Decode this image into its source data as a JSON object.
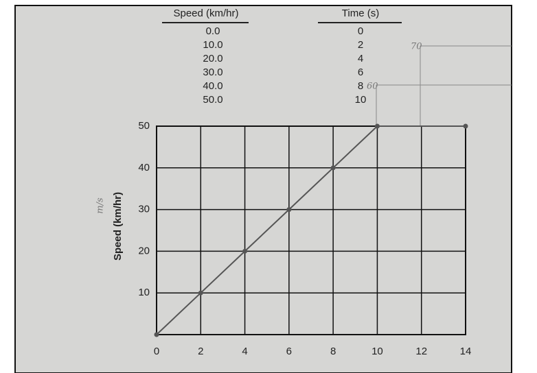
{
  "table": {
    "headers": [
      "Speed (km/hr)",
      "Time (s)"
    ],
    "rows": [
      [
        "0.0",
        "0"
      ],
      [
        "10.0",
        "2"
      ],
      [
        "20.0",
        "4"
      ],
      [
        "30.0",
        "6"
      ],
      [
        "40.0",
        "8"
      ],
      [
        "50.0",
        "10"
      ]
    ]
  },
  "chart_data": {
    "type": "line",
    "y_label": "Speed (km/hr)",
    "annotations": [
      "m/s",
      "70",
      "60"
    ],
    "x": [
      0,
      2,
      4,
      6,
      8,
      10,
      14
    ],
    "series": [
      {
        "color": "#555555",
        "values": [
          0,
          10,
          20,
          30,
          40,
          50,
          50
        ]
      }
    ],
    "xlim": [
      0,
      14
    ],
    "xticks": [
      0,
      2,
      4,
      6,
      8,
      10,
      12,
      14
    ],
    "ylim": [
      0,
      50
    ],
    "yticks": [
      10,
      20,
      30,
      40,
      50
    ],
    "grid": true
  }
}
